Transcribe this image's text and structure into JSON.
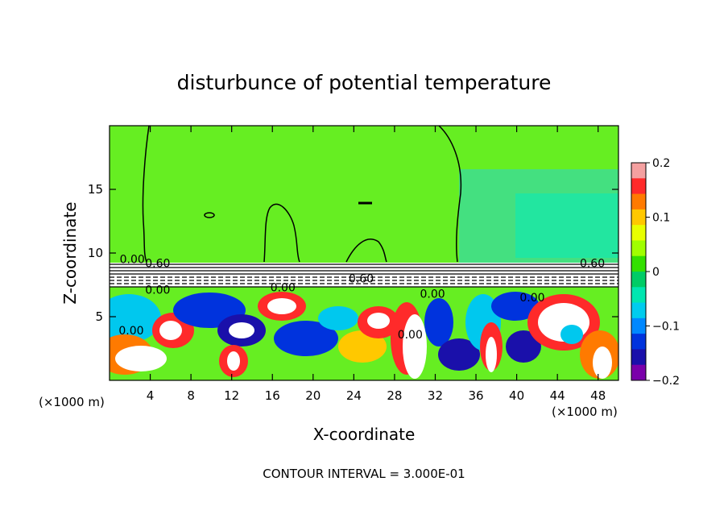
{
  "chart_data": {
    "type": "heatmap",
    "title": "disturbunce of potential temperature",
    "xlabel": "X-coordinate",
    "ylabel": "Z-coordinate",
    "x_unit_label": "(×1000 m)",
    "z_unit_label": "(×1000 m)",
    "footer": "CONTOUR INTERVAL = 3.000E-01",
    "xlim": [
      0,
      50
    ],
    "ylim": [
      0,
      20
    ],
    "x_ticks": [
      4,
      8,
      12,
      16,
      20,
      24,
      28,
      32,
      36,
      40,
      44,
      48
    ],
    "y_ticks": [
      5,
      10,
      15
    ],
    "colorbar": {
      "min": -0.2,
      "max": 0.2,
      "ticks": [
        0.2,
        0.1,
        0,
        -0.1,
        -0.2
      ],
      "tick_labels": [
        "0.2",
        "0.1",
        "0",
        "−0.1",
        "−0.2"
      ],
      "colors": [
        "#f4a0a0",
        "#ff2a2a",
        "#ff7a00",
        "#ffc800",
        "#e8ff00",
        "#a0ff00",
        "#33e000",
        "#00cc66",
        "#00e6b0",
        "#00ccee",
        "#0088ff",
        "#0033dd",
        "#1a10aa",
        "#7a00aa"
      ]
    },
    "contour_labels": [
      {
        "text": "0.00",
        "x": 1,
        "z": 9.2
      },
      {
        "text": "0.60",
        "x": 3.5,
        "z": 8.9
      },
      {
        "text": "0.00",
        "x": 3.5,
        "z": 6.8
      },
      {
        "text": "0.00",
        "x": 0.9,
        "z": 3.6
      },
      {
        "text": "0.00",
        "x": 15.8,
        "z": 7.0
      },
      {
        "text": "0.60",
        "x": 23.5,
        "z": 7.7
      },
      {
        "text": "0.00",
        "x": 30.5,
        "z": 6.5
      },
      {
        "text": "0.00",
        "x": 28.3,
        "z": 3.3
      },
      {
        "text": "0.00",
        "x": 40.3,
        "z": 6.2
      },
      {
        "text": "0.60",
        "x": 46.2,
        "z": 8.9
      }
    ]
  }
}
